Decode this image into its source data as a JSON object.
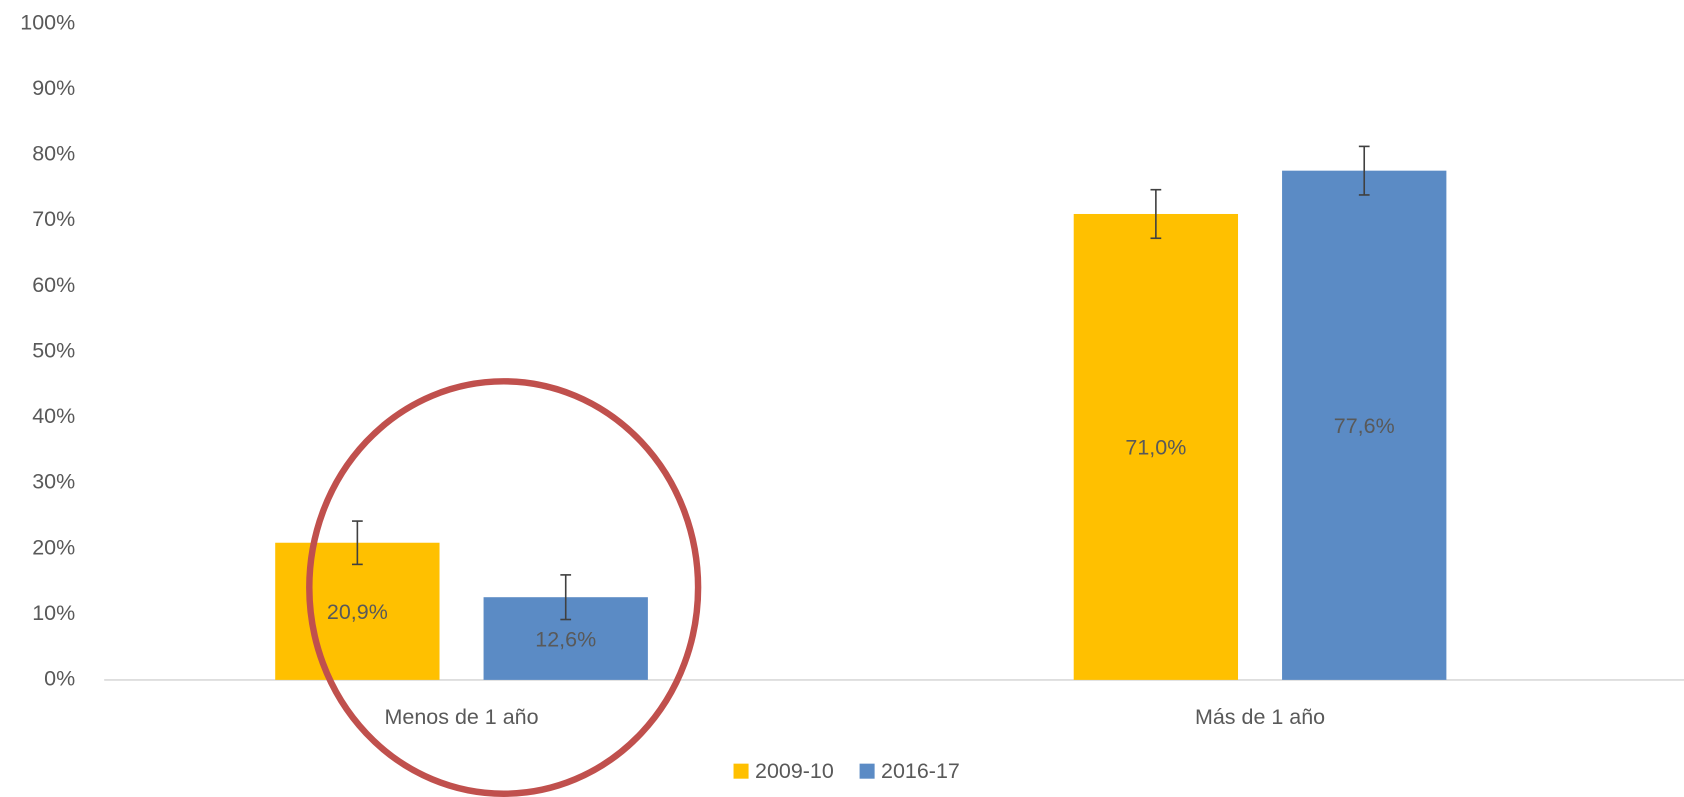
{
  "chart_data": {
    "type": "bar",
    "categories": [
      "Menos de 1 año",
      "Más de 1 año"
    ],
    "series": [
      {
        "name": "2009-10",
        "color": "#ffc000",
        "values": [
          20.9,
          71.0
        ],
        "value_labels": [
          "20,9%",
          "71,0%"
        ],
        "errors": [
          3.3,
          3.7
        ]
      },
      {
        "name": "2016-17",
        "color": "#5b8bc5",
        "values": [
          12.6,
          77.6
        ],
        "value_labels": [
          "12,6%",
          "77,6%"
        ],
        "errors": [
          3.4,
          3.7
        ]
      }
    ],
    "ylim": [
      0,
      100
    ],
    "yticks": [
      {
        "value": 0,
        "label": "0%"
      },
      {
        "value": 10,
        "label": "10%"
      },
      {
        "value": 20,
        "label": "20%"
      },
      {
        "value": 30,
        "label": "30%"
      },
      {
        "value": 40,
        "label": "40%"
      },
      {
        "value": 50,
        "label": "50%"
      },
      {
        "value": 60,
        "label": "60%"
      },
      {
        "value": 70,
        "label": "70%"
      },
      {
        "value": 80,
        "label": "80%"
      },
      {
        "value": 90,
        "label": "90%"
      },
      {
        "value": 100,
        "label": "100%"
      }
    ],
    "grid": false,
    "legend": "bottom"
  }
}
